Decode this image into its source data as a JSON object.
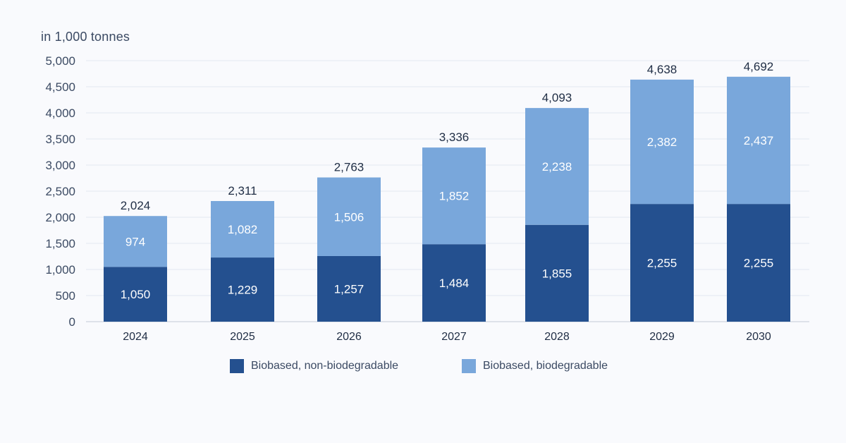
{
  "chart_data": {
    "type": "bar",
    "stacked": true,
    "unit_label": "in 1,000 tonnes",
    "categories": [
      "2024",
      "2025",
      "2026",
      "2027",
      "2028",
      "2029",
      "2030"
    ],
    "series": [
      {
        "name": "Biobased, non-biodegradable",
        "color": "#24508f",
        "values": [
          1050,
          1229,
          1257,
          1484,
          1855,
          2255,
          2255
        ],
        "labels": [
          "1,050",
          "1,229",
          "1,257",
          "1,484",
          "1,855",
          "2,255",
          "2,255"
        ]
      },
      {
        "name": "Biobased, biodegradable",
        "color": "#79a7db",
        "values": [
          974,
          1082,
          1506,
          1852,
          2238,
          2382,
          2437
        ],
        "labels": [
          "974",
          "1,082",
          "1,506",
          "1,852",
          "2,238",
          "2,382",
          "2,437"
        ]
      }
    ],
    "totals": [
      2024,
      2311,
      2763,
      3336,
      4093,
      4638,
      4692
    ],
    "total_labels": [
      "2,024",
      "2,311",
      "2,763",
      "3,336",
      "4,093",
      "4,638",
      "4,692"
    ],
    "ylim": [
      0,
      5000
    ],
    "yticks": [
      0,
      500,
      1000,
      1500,
      2000,
      2500,
      3000,
      3500,
      4000,
      4500,
      5000
    ],
    "ytick_labels": [
      "0",
      "500",
      "1,000",
      "1,500",
      "2,000",
      "2,500",
      "3,000",
      "3,500",
      "4,000",
      "4,500",
      "5,000"
    ],
    "grid": true,
    "legend_position": "bottom-center"
  },
  "colors": {
    "text": "#3b4a63",
    "grid": "#e3e8f1",
    "axis": "#c3cad6"
  }
}
